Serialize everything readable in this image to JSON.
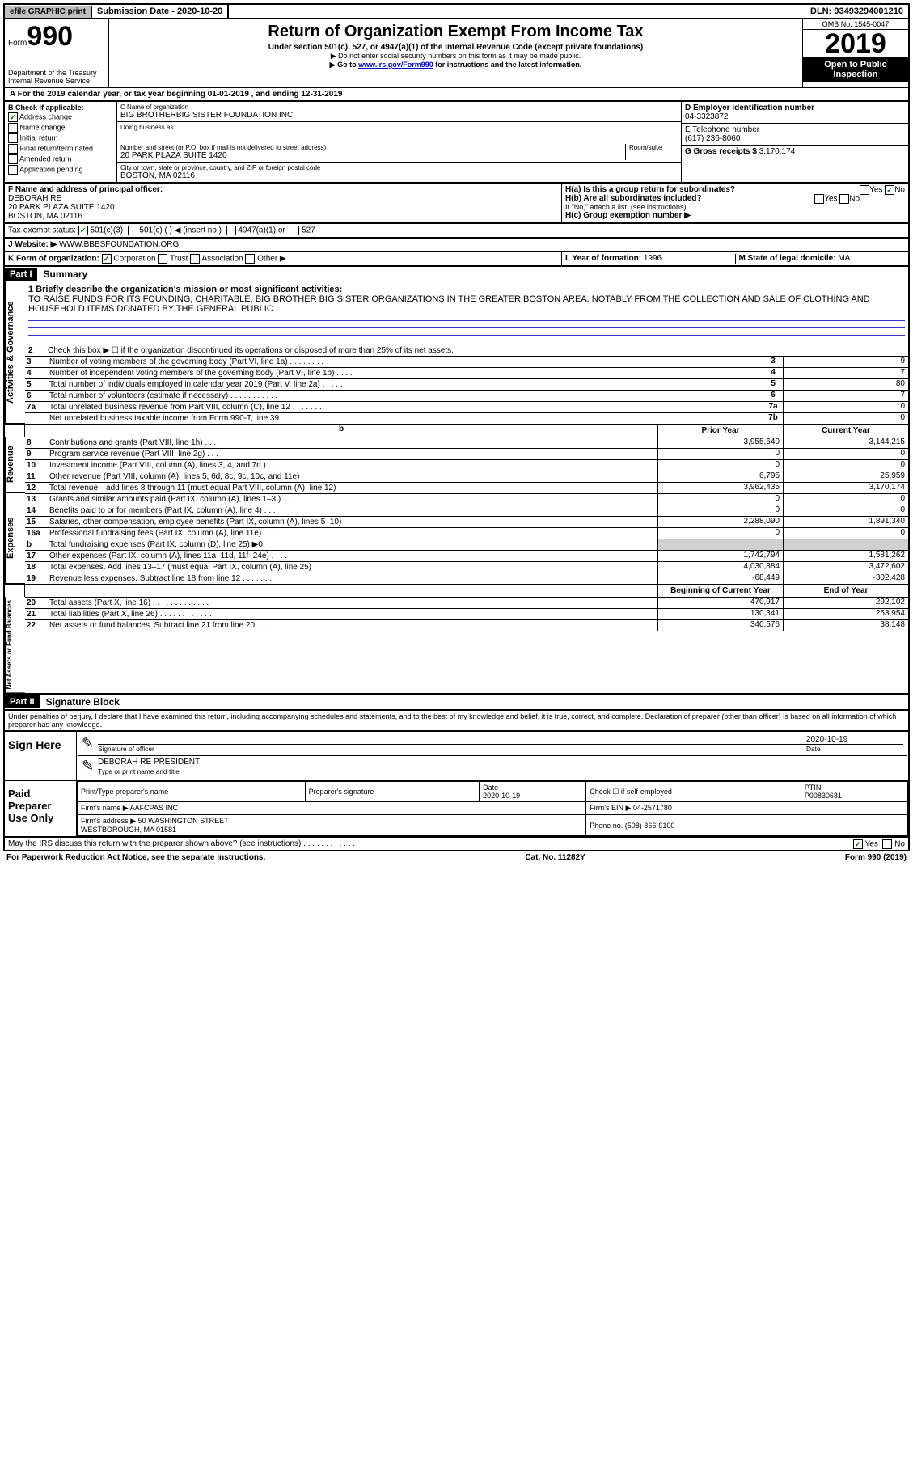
{
  "topbar": {
    "efile": "efile GRAPHIC print",
    "subdate_label": "Submission Date - ",
    "subdate": "2020-10-20",
    "dln_label": "DLN: ",
    "dln": "93493294001210"
  },
  "header": {
    "form_prefix": "Form",
    "form_num": "990",
    "dept": "Department of the Treasury\nInternal Revenue Service",
    "title": "Return of Organization Exempt From Income Tax",
    "subtitle": "Under section 501(c), 527, or 4947(a)(1) of the Internal Revenue Code (except private foundations)",
    "note1": "▶ Do not enter social security numbers on this form as it may be made public.",
    "note2_pre": "▶ Go to ",
    "note2_link": "www.irs.gov/Form990",
    "note2_post": " for instructions and the latest information.",
    "omb": "OMB No. 1545-0047",
    "year": "2019",
    "inspection": "Open to Public Inspection"
  },
  "period": "A For the 2019 calendar year, or tax year beginning 01-01-2019    , and ending 12-31-2019",
  "boxB": {
    "label": "B Check if applicable:",
    "addr_change": "Address change",
    "name_change": "Name change",
    "initial": "Initial return",
    "final": "Final return/terminated",
    "amended": "Amended return",
    "pending": "Application pending"
  },
  "boxC": {
    "name_label": "C Name of organization",
    "name": "BIG BROTHERBIG SISTER FOUNDATION INC",
    "dba_label": "Doing business as",
    "addr_label": "Number and street (or P.O. box if mail is not delivered to street address)",
    "room": "Room/suite",
    "addr": "20 PARK PLAZA SUITE 1420",
    "city_label": "City or town, state or province, country, and ZIP or foreign postal code",
    "city": "BOSTON, MA  02116"
  },
  "boxD": {
    "label": "D Employer identification number",
    "ein": "04-3323872"
  },
  "boxE": {
    "label": "E Telephone number",
    "phone": "(617) 236-8060"
  },
  "boxG": {
    "label": "G Gross receipts $ ",
    "val": "3,170,174"
  },
  "boxF": {
    "label": "F  Name and address of principal officer:",
    "name": "DEBORAH RE",
    "addr1": "20 PARK PLAZA SUITE 1420",
    "addr2": "BOSTON, MA  02116"
  },
  "boxH": {
    "ha": "H(a)  Is this a group return for subordinates?",
    "hb": "H(b)  Are all subordinates included?",
    "hb_note": "If \"No,\" attach a list. (see instructions)",
    "hc": "H(c)  Group exemption number ▶",
    "yes": "Yes",
    "no": "No"
  },
  "taxexempt": {
    "label": "Tax-exempt status:",
    "c3": "501(c)(3)",
    "c": "501(c) (   ) ◀ (insert no.)",
    "a1": "4947(a)(1) or",
    "s527": "527"
  },
  "website": {
    "label": "J  Website: ▶ ",
    "val": "WWW.BBBSFOUNDATION.ORG"
  },
  "boxK": {
    "label": "K Form of organization:",
    "corp": "Corporation",
    "trust": "Trust",
    "assoc": "Association",
    "other": "Other ▶"
  },
  "boxL": {
    "label": "L Year of formation: ",
    "val": "1996"
  },
  "boxM": {
    "label": "M State of legal domicile: ",
    "val": "MA"
  },
  "part1": {
    "header": "Part I",
    "title": "Summary"
  },
  "mission": {
    "label": "1  Briefly describe the organization's mission or most significant activities:",
    "text": "TO RAISE FUNDS FOR ITS FOUNDING, CHARITABLE, BIG BROTHER BIG SISTER ORGANIZATIONS IN THE GREATER BOSTON AREA, NOTABLY FROM THE COLLECTION AND SALE OF CLOTHING AND HOUSEHOLD ITEMS DONATED BY THE GENERAL PUBLIC."
  },
  "line2": "Check this box ▶ ☐  if the organization discontinued its operations or disposed of more than 25% of its net assets.",
  "gov_lines": [
    {
      "n": "3",
      "d": "Number of voting members of the governing body (Part VI, line 1a)  .    .    .    .    .    .    .    .",
      "b": "3",
      "v": "9"
    },
    {
      "n": "4",
      "d": "Number of independent voting members of the governing body (Part VI, line 1b)  .    .    .    .",
      "b": "4",
      "v": "7"
    },
    {
      "n": "5",
      "d": "Total number of individuals employed in calendar year 2019 (Part V, line 2a)  .    .    .    .    .",
      "b": "5",
      "v": "80"
    },
    {
      "n": "6",
      "d": "Total number of volunteers (estimate if necessary)   .    .    .    .    .    .    .    .    .    .    .    .",
      "b": "6",
      "v": "7"
    },
    {
      "n": "7a",
      "d": "Total unrelated business revenue from Part VIII, column (C), line 12  .    .    .    .    .    .    .",
      "b": "7a",
      "v": "0"
    },
    {
      "n": "",
      "d": "Net unrelated business taxable income from Form 990-T, line 39   .    .    .    .    .    .    .    .",
      "b": "7b",
      "v": "0"
    }
  ],
  "year_cols": {
    "prior": "Prior Year",
    "current": "Current Year"
  },
  "rev_lines": [
    {
      "n": "8",
      "d": "Contributions and grants (Part VIII, line 1h)  .    .    .",
      "p": "3,955,640",
      "c": "3,144,215"
    },
    {
      "n": "9",
      "d": "Program service revenue (Part VIII, line 2g)  .    .    .",
      "p": "0",
      "c": "0"
    },
    {
      "n": "10",
      "d": "Investment income (Part VIII, column (A), lines 3, 4, and 7d )    .    .    .",
      "p": "0",
      "c": "0"
    },
    {
      "n": "11",
      "d": "Other revenue (Part VIII, column (A), lines 5, 6d, 8c, 9c, 10c, and 11e)",
      "p": "6,795",
      "c": "25,959"
    },
    {
      "n": "12",
      "d": "Total revenue—add lines 8 through 11 (must equal Part VIII, column (A), line 12)",
      "p": "3,962,435",
      "c": "3,170,174"
    }
  ],
  "exp_lines": [
    {
      "n": "13",
      "d": "Grants and similar amounts paid (Part IX, column (A), lines 1–3 )  .    .    .",
      "p": "0",
      "c": "0"
    },
    {
      "n": "14",
      "d": "Benefits paid to or for members (Part IX, column (A), line 4)  .    .    .",
      "p": "0",
      "c": "0"
    },
    {
      "n": "15",
      "d": "Salaries, other compensation, employee benefits (Part IX, column (A), lines 5–10)",
      "p": "2,288,090",
      "c": "1,891,340"
    },
    {
      "n": "16a",
      "d": "Professional fundraising fees (Part IX, column (A), line 11e)  .    .    .    .",
      "p": "0",
      "c": "0"
    },
    {
      "n": "b",
      "d": "Total fundraising expenses (Part IX, column (D), line 25) ▶0",
      "p": "",
      "c": "",
      "shaded": true
    },
    {
      "n": "17",
      "d": "Other expenses (Part IX, column (A), lines 11a–11d, 11f–24e)  .    .    .    .",
      "p": "1,742,794",
      "c": "1,581,262"
    },
    {
      "n": "18",
      "d": "Total expenses. Add lines 13–17 (must equal Part IX, column (A), line 25)",
      "p": "4,030,884",
      "c": "3,472,602"
    },
    {
      "n": "19",
      "d": "Revenue less expenses. Subtract line 18 from line 12  .    .    .    .    .    .    .",
      "p": "-68,449",
      "c": "-302,428"
    }
  ],
  "net_cols": {
    "begin": "Beginning of Current Year",
    "end": "End of Year"
  },
  "net_lines": [
    {
      "n": "20",
      "d": "Total assets (Part X, line 16)  .    .    .    .    .    .    .    .    .    .    .    .    .",
      "p": "470,917",
      "c": "292,102"
    },
    {
      "n": "21",
      "d": "Total liabilities (Part X, line 26)  .    .    .    .    .    .    .    .    .    .    .    .",
      "p": "130,341",
      "c": "253,954"
    },
    {
      "n": "22",
      "d": "Net assets or fund balances. Subtract line 21 from line 20  .    .    .    .",
      "p": "340,576",
      "c": "38,148"
    }
  ],
  "side_labels": {
    "gov": "Activities & Governance",
    "rev": "Revenue",
    "exp": "Expenses",
    "net": "Net Assets or Fund Balances"
  },
  "part2": {
    "header": "Part II",
    "title": "Signature Block"
  },
  "penalty": "Under penalties of perjury, I declare that I have examined this return, including accompanying schedules and statements, and to the best of my knowledge and belief, it is true, correct, and complete. Declaration of preparer (other than officer) is based on all information of which preparer has any knowledge.",
  "sign": {
    "label": "Sign Here",
    "sig_label": "Signature of officer",
    "date_label": "Date",
    "date": "2020-10-19",
    "name": "DEBORAH RE PRESIDENT",
    "name_label": "Type or print name and title"
  },
  "prep": {
    "label": "Paid Preparer Use Only",
    "name_label": "Print/Type preparer's name",
    "sig_label": "Preparer's signature",
    "date_label": "Date",
    "date": "2020-10-19",
    "check_label": "Check ☐ if self-employed",
    "ptin_label": "PTIN",
    "ptin": "P00830631",
    "firm_label": "Firm's name   ▶ ",
    "firm": "AAFCPAS INC",
    "ein_label": "Firm's EIN ▶ ",
    "ein": "04-2571780",
    "addr_label": "Firm's address ▶ ",
    "addr": "50 WASHINGTON STREET",
    "addr2": "WESTBOROUGH, MA  01581",
    "phone_label": "Phone no. ",
    "phone": "(508) 366-9100"
  },
  "irs_discuss": "May the IRS discuss this return with the preparer shown above? (see instructions)   .    .    .    .    .    .    .    .    .    .    .    .",
  "footer": {
    "left": "For Paperwork Reduction Act Notice, see the separate instructions.",
    "mid": "Cat. No. 11282Y",
    "right": "Form 990 (2019)"
  }
}
